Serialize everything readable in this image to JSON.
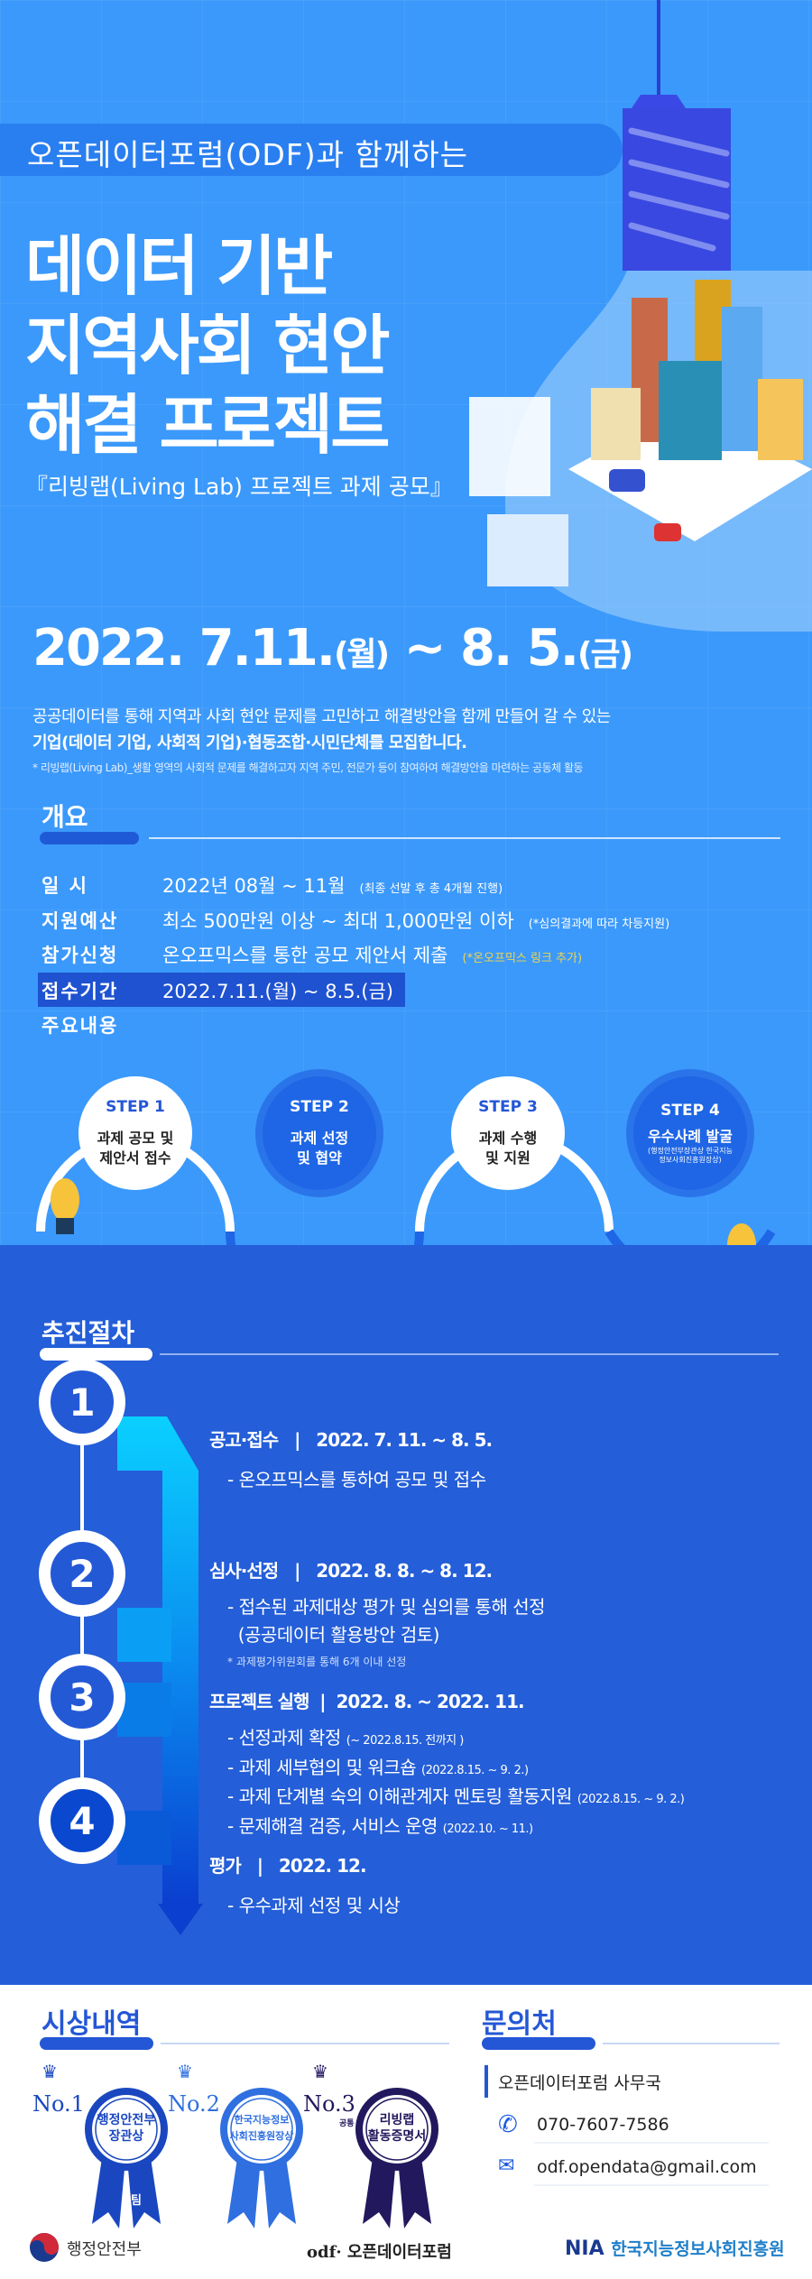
{
  "header": {
    "pill": "오픈데이터포럼(ODF)과  함께하는",
    "title_lines": [
      "데이터 기반",
      "지역사회 현안",
      "해결 프로젝트"
    ],
    "subtitle": "『리빙랩(Living Lab) 프로젝트 과제 공모』"
  },
  "period": {
    "main": "2022. 7.11.",
    "d1": "(월)",
    "sep": " ~ 8. 5.",
    "d2": "(금)"
  },
  "intro": {
    "line1": "공공데이터를 통해 지역과 사회 현안 문제를 고민하고 해결방안을 함께 만들어 갈 수 있는",
    "line2": "기업(데이터 기업, 사회적 기업)·협동조합·시민단체를 모집합니다.",
    "note": "* 리빙랩(Living Lab)_생활 영역의 사회적 문제를 해결하고자 지역 주민, 전문가 등이 참여하여 해결방안을 마련하는 공동체 활동"
  },
  "overview": {
    "heading": "개요",
    "rows": [
      {
        "key": "일      시",
        "value": "2022년 08월 ~ 11월",
        "note": "(최종 선발 후 총 4개월 진행)"
      },
      {
        "key": "지원예산",
        "value": "최소 500만원 이상 ~ 최대 1,000만원 이하",
        "note": "(*심의결과에 따라 차등지원)"
      },
      {
        "key": "참가신청",
        "value": "온오프믹스를 통한 공모 제안서 제출",
        "note": "(*온오프믹스 링크 추가)"
      },
      {
        "key": "접수기간",
        "value": "2022.7.11.(월) ~ 8.5.(금)",
        "note": ""
      },
      {
        "key": "주요내용",
        "value": "",
        "note": ""
      }
    ],
    "steps": [
      {
        "label": "STEP 1",
        "text1": "과제 공모 및",
        "text2": "제안서 접수",
        "note": ""
      },
      {
        "label": "STEP 2",
        "text1": "과제 선정",
        "text2": "및 협약",
        "note": ""
      },
      {
        "label": "STEP 3",
        "text1": "과제 수행",
        "text2": "및 지원",
        "note": ""
      },
      {
        "label": "STEP 4",
        "text1": "우수사례 발굴",
        "text2": "",
        "note": "(행정안전부장관상 한국지능정보사회진흥원장상)"
      }
    ]
  },
  "procedure": {
    "heading": "추진절차",
    "phases": [
      {
        "num": "1",
        "title": "공고·접수   |   2022. 7. 11. ~ 8. 5.",
        "items": [
          {
            "t": "- 온오프믹스를 통하여 공모 및 접수",
            "s": ""
          }
        ],
        "note": ""
      },
      {
        "num": "2",
        "title": "심사·선정   |   2022. 8. 8. ~ 8. 12.",
        "items": [
          {
            "t": "- 접수된 과제대상 평가 및 심의를 통해 선정",
            "s": ""
          },
          {
            "t": "  (공공데이터 활용방안 검토)",
            "s": ""
          }
        ],
        "note": "* 과제평가위원회를 통해 6개 이내 선정"
      },
      {
        "num": "3",
        "title": "프로젝트 실행  |  2022. 8. ~ 2022. 11.",
        "items": [
          {
            "t": "- 선정과제 확정",
            "s": "(~ 2022.8.15. 전까지 )"
          },
          {
            "t": "- 과제 세부협의 및 워크숍",
            "s": "(2022.8.15. ~ 9. 2.)"
          },
          {
            "t": "- 과제 단계별 숙의 이해관계자 멘토링 활동지원",
            "s": "(2022.8.15. ~ 9. 2.)"
          },
          {
            "t": "- 문제해결 검증, 서비스 운영",
            "s": "(2022.10. ~ 11.)"
          }
        ],
        "note": ""
      },
      {
        "num": "4",
        "title": "평가   |   2022. 12.",
        "items": [
          {
            "t": "- 우수과제 선정 및 시상",
            "s": ""
          }
        ],
        "note": ""
      }
    ]
  },
  "awards": {
    "heading": "시상내역",
    "items": [
      {
        "rank": "No.1",
        "text1": "행정안전부",
        "text2": "장관상",
        "extra": "1팀",
        "color": "#1a47c0"
      },
      {
        "rank": "No.2",
        "text1": "한국지능정보",
        "text2": "사회진흥원장상",
        "extra": "",
        "color": "#2f6fe0"
      },
      {
        "rank": "No.3",
        "text1": "리빙랩",
        "text2": "활동증명서",
        "extra": "공통",
        "color": "#22185e"
      }
    ]
  },
  "contact": {
    "heading": "문의처",
    "org": "오픈데이터포럼 사무국",
    "phone": "070-7607-7586",
    "email": "odf.opendata@gmail.com"
  },
  "footer": {
    "logo1": "행정안전부",
    "logo2": "오픈데이터포럼",
    "logo3_abbr": "NIA",
    "logo3": "한국지능정보사회진흥원"
  },
  "colors": {
    "top_bg": "#3b99fb",
    "mid_bg": "#245ed8",
    "accent": "#2457d6"
  }
}
